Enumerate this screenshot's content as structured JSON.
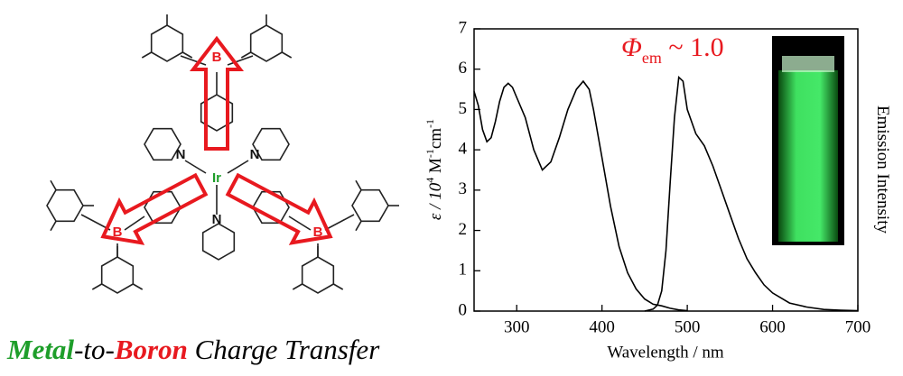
{
  "molecule": {
    "labels": [
      "B",
      "B",
      "B",
      "N",
      "N",
      "N",
      "Ir"
    ]
  },
  "caption": {
    "parts": [
      "Metal",
      "-to-",
      "Boron",
      " Charge Transfer"
    ]
  },
  "chart_data": {
    "type": "line",
    "xlabel": "Wavelength / nm",
    "ylabel": [
      "ε / 10",
      "4",
      " M",
      "-1",
      "cm",
      "-1"
    ],
    "y2label": "Emission Intensity",
    "annotation": [
      "Φ",
      "em",
      " ~ 1.0"
    ],
    "xlim": [
      250,
      700
    ],
    "xticks": [
      300,
      400,
      500,
      600,
      700
    ],
    "ylim": [
      0,
      7
    ],
    "yticks": [
      0,
      1,
      2,
      3,
      4,
      5,
      6,
      7
    ],
    "y2lim": [
      0,
      7
    ],
    "series": [
      {
        "color": "#000000",
        "x": [
          250,
          255,
          260,
          265,
          270,
          275,
          280,
          285,
          290,
          295,
          300,
          310,
          320,
          330,
          340,
          350,
          360,
          370,
          378,
          385,
          390,
          400,
          410,
          420,
          430,
          440,
          450,
          460,
          470,
          480,
          490,
          500
        ],
        "values": [
          5.45,
          5.1,
          4.5,
          4.2,
          4.3,
          4.7,
          5.2,
          5.55,
          5.65,
          5.55,
          5.3,
          4.8,
          4.0,
          3.5,
          3.7,
          4.3,
          5.0,
          5.5,
          5.7,
          5.5,
          5.0,
          3.8,
          2.6,
          1.6,
          0.95,
          0.55,
          0.3,
          0.17,
          0.13,
          0.07,
          0.03,
          0.01
        ]
      },
      {
        "color": "#000000",
        "axis": "y2",
        "x": [
          450,
          460,
          465,
          470,
          475,
          480,
          485,
          490,
          495,
          500,
          510,
          520,
          530,
          540,
          550,
          560,
          570,
          580,
          590,
          600,
          620,
          640,
          660,
          680,
          700
        ],
        "values": [
          0,
          0.05,
          0.15,
          0.5,
          1.5,
          3.2,
          4.8,
          5.8,
          5.7,
          5.0,
          4.4,
          4.1,
          3.6,
          3.0,
          2.4,
          1.8,
          1.3,
          0.95,
          0.65,
          0.45,
          0.2,
          0.1,
          0.04,
          0.02,
          0.01
        ]
      }
    ]
  }
}
